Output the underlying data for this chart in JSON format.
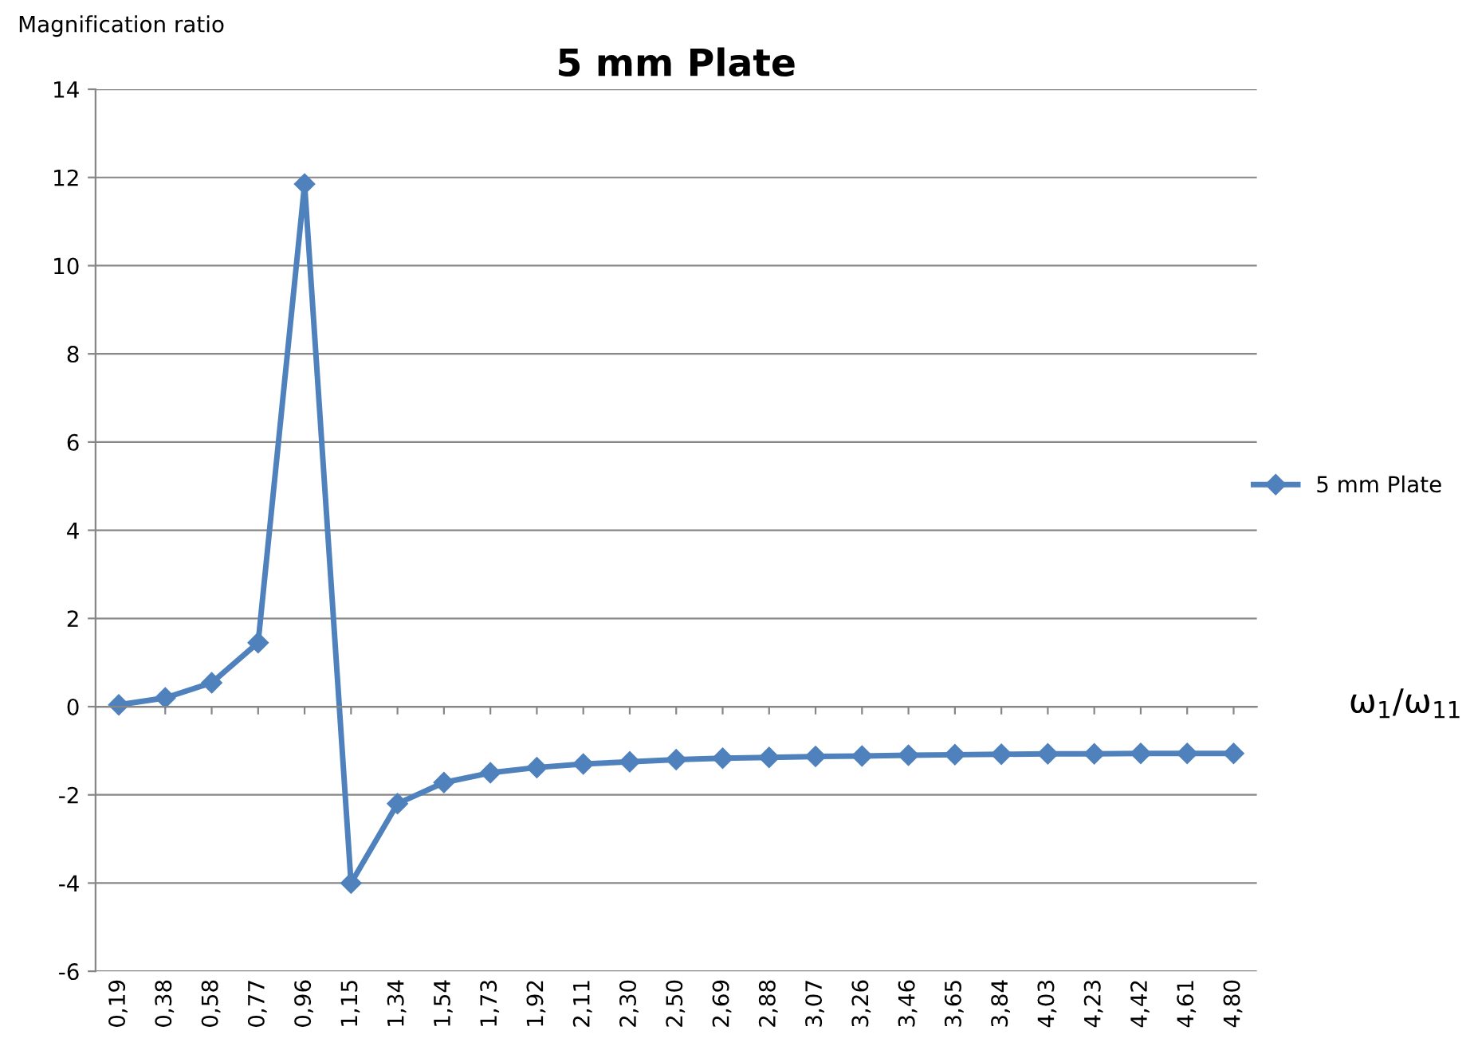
{
  "chart_data": {
    "type": "line",
    "title": "5 mm Plate",
    "ylabel": "Magnification ratio",
    "xlabel": "ω$_{1}$/ω$_{11}$",
    "categories": [
      "0,19",
      "0,38",
      "0,58",
      "0,77",
      "0,96",
      "1,15",
      "1,34",
      "1,54",
      "1,73",
      "1,92",
      "2,11",
      "2,30",
      "2,50",
      "2,69",
      "2,88",
      "3,07",
      "3,26",
      "3,46",
      "3,65",
      "3,84",
      "4,03",
      "4,23",
      "4,42",
      "4,61",
      "4,80"
    ],
    "series": [
      {
        "name": "5 mm Plate",
        "color": "#4f81bd",
        "values": [
          0.04,
          0.2,
          0.54,
          1.45,
          11.85,
          -4.0,
          -2.2,
          -1.72,
          -1.5,
          -1.38,
          -1.3,
          -1.25,
          -1.2,
          -1.17,
          -1.15,
          -1.13,
          -1.12,
          -1.1,
          -1.09,
          -1.08,
          -1.07,
          -1.07,
          -1.06,
          -1.06,
          -1.06
        ]
      }
    ],
    "ylim": [
      -6,
      14
    ],
    "yticks": [
      -6,
      -4,
      -2,
      0,
      2,
      4,
      6,
      8,
      10,
      12,
      14
    ],
    "grid": "y",
    "legend": "right",
    "marker": "diamond",
    "line_style": "solid"
  }
}
